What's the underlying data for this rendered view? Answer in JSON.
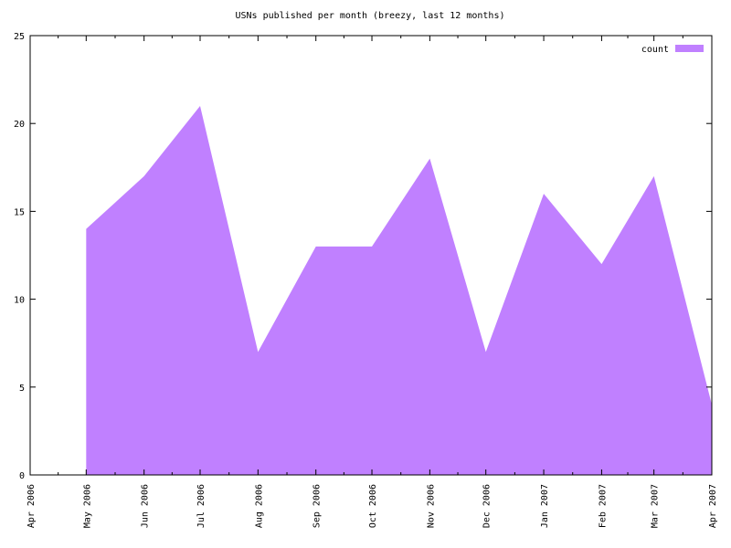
{
  "chart_data": {
    "type": "area",
    "title": "USNs published per month (breezy, last 12 months)",
    "categories": [
      "Apr 2006",
      "May 2006",
      "Jun 2006",
      "Jul 2006",
      "Aug 2006",
      "Sep 2006",
      "Oct 2006",
      "Nov 2006",
      "Dec 2006",
      "Jan 2007",
      "Feb 2007",
      "Mar 2007",
      "Apr 2007"
    ],
    "series": [
      {
        "name": "count",
        "color": "#c080ff",
        "values": [
          null,
          14,
          17,
          21,
          7,
          13,
          13,
          18,
          7,
          16,
          12,
          17,
          4
        ]
      }
    ],
    "ylim": [
      0,
      25
    ],
    "yticks": [
      0,
      5,
      10,
      15,
      20,
      25
    ],
    "legend": "top-right"
  }
}
